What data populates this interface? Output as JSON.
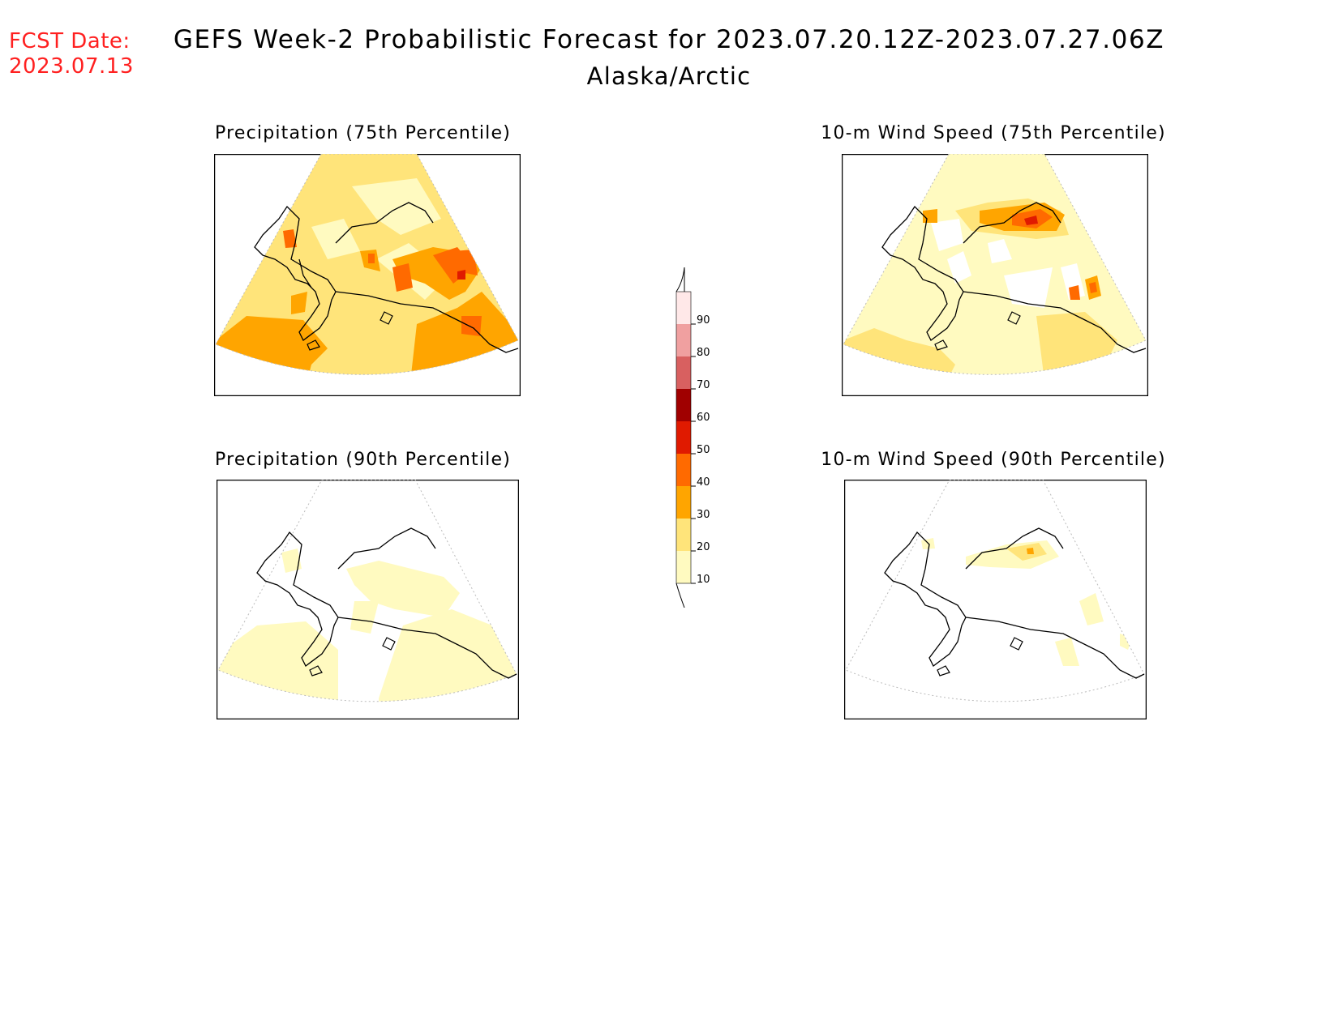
{
  "header": {
    "fcst_date_label": "FCST Date:",
    "fcst_date_value": "2023.07.13",
    "title": "GEFS Week-2 Probabilistic Forecast for 2023.07.20.12Z-2023.07.27.06Z",
    "region": "Alaska/Arctic"
  },
  "panels": [
    {
      "id": "precip75",
      "title": "Precipitation (75th Percentile)"
    },
    {
      "id": "wind75",
      "title": "10-m Wind Speed (75th Percentile)"
    },
    {
      "id": "precip90",
      "title": "Precipitation (90th Percentile)"
    },
    {
      "id": "wind90",
      "title": "10-m Wind Speed (90th Percentile)"
    }
  ],
  "colorbar": {
    "levels": [
      "10",
      "20",
      "30",
      "40",
      "50",
      "60",
      "70",
      "80",
      "90"
    ],
    "colors": [
      "#fffac0",
      "#ffe47a",
      "#ffa500",
      "#ff6a00",
      "#e01a00",
      "#a00000",
      "#d86060",
      "#f0a0a0",
      "#ffe8e8"
    ]
  },
  "colors": {
    "fcst_date": "#ff2020"
  }
}
